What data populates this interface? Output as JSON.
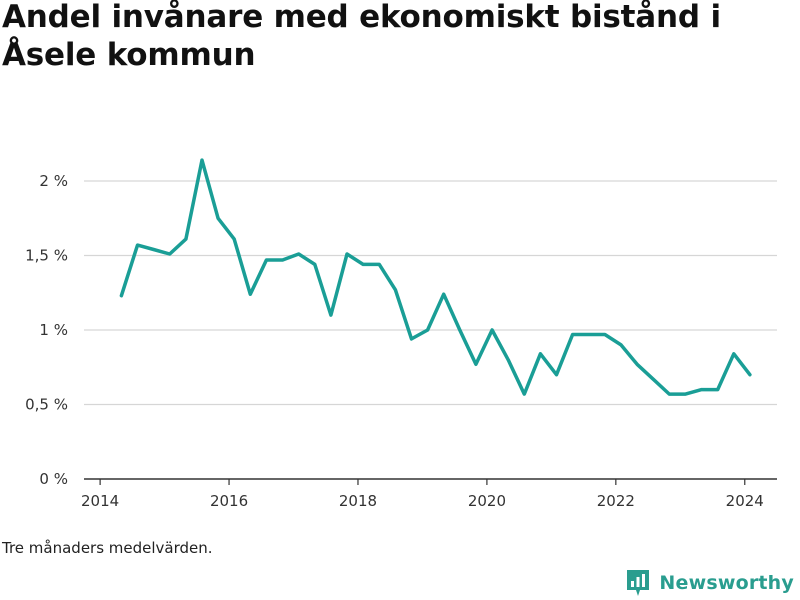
{
  "title": "Andel invånare med ekonomiskt bistånd i Åsele kommun",
  "footnote": "Tre månaders medelvärden.",
  "brand": {
    "name": "Newsworthy",
    "icon": "newsworthy-logo-icon",
    "color": "#2a9d8f"
  },
  "chart_data": {
    "type": "line",
    "title": "Andel invånare med ekonomiskt bistånd i Åsele kommun",
    "xlabel": "",
    "ylabel": "",
    "xlim": [
      2013.75,
      2024.5
    ],
    "ylim": [
      0,
      2.0
    ],
    "x_ticks": [
      2014,
      2016,
      2018,
      2020,
      2022,
      2024
    ],
    "x_tick_labels": [
      "2014",
      "2016",
      "2018",
      "2020",
      "2022",
      "2024"
    ],
    "y_ticks": [
      0,
      0.5,
      1.0,
      1.5,
      2.0
    ],
    "y_tick_labels": [
      "0 %",
      "0,5 %",
      "1 %",
      "1,5 %",
      "2 %"
    ],
    "grid": "horizontal",
    "line_color": "#1a9e96",
    "series": [
      {
        "x": [
          2014.33,
          2014.58,
          2014.83,
          2015.08,
          2015.33,
          2015.58,
          2015.83,
          2016.08,
          2016.33,
          2016.58,
          2016.83,
          2017.08,
          2017.33,
          2017.58,
          2017.83,
          2018.08,
          2018.33,
          2018.58,
          2018.83,
          2019.08,
          2019.33,
          2019.58,
          2019.83,
          2020.08,
          2020.33,
          2020.58,
          2020.83,
          2021.08,
          2021.33,
          2021.58,
          2021.83,
          2022.08,
          2022.33,
          2022.58,
          2022.83,
          2023.08,
          2023.33,
          2023.58,
          2023.83,
          2024.08
        ],
        "values": [
          1.23,
          1.57,
          1.54,
          1.51,
          1.61,
          2.14,
          1.75,
          1.61,
          1.24,
          1.47,
          1.47,
          1.51,
          1.44,
          1.1,
          1.51,
          1.44,
          1.44,
          1.27,
          0.94,
          1.0,
          1.24,
          1.0,
          0.77,
          1.0,
          0.8,
          0.57,
          0.84,
          0.7,
          0.97,
          0.97,
          0.97,
          0.9,
          0.77,
          0.67,
          0.57,
          0.57,
          0.6,
          0.6,
          0.84,
          0.7
        ]
      }
    ]
  }
}
